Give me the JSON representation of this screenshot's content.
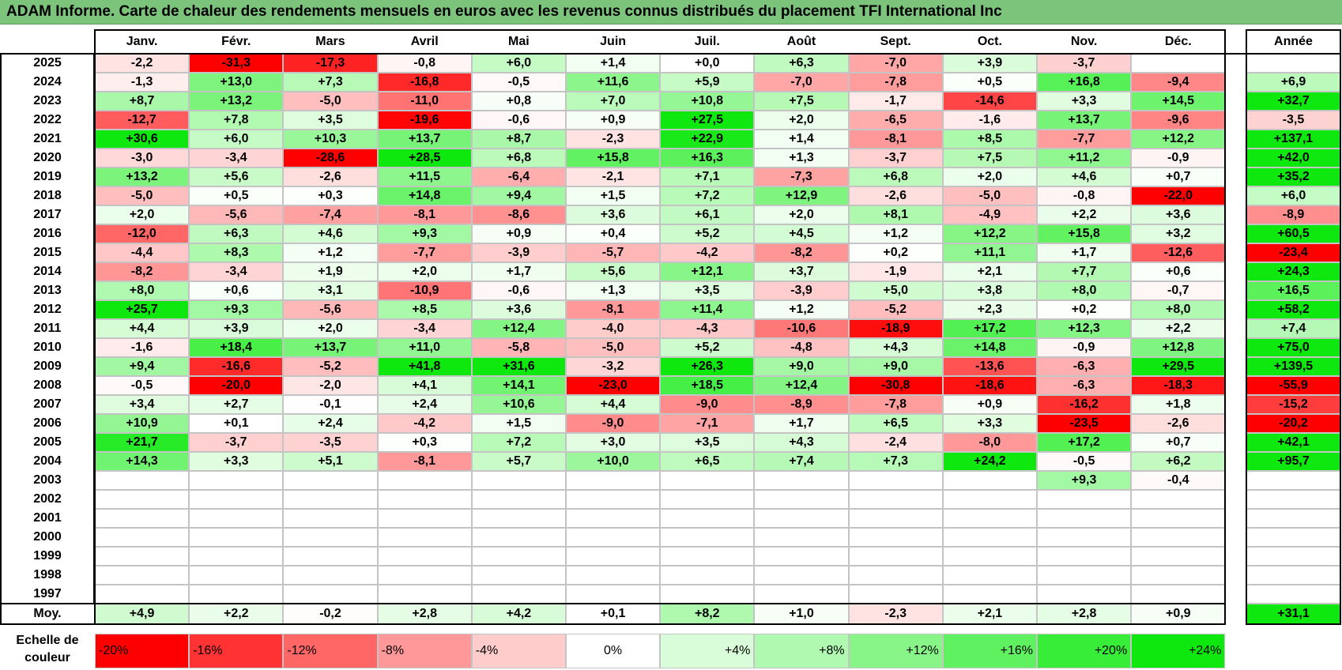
{
  "title": "ADAM Informe. Carte de chaleur des rendements mensuels en euros avec les revenus connus distribués du placement TFI International Inc",
  "chart_data": {
    "type": "heatmap",
    "title": "ADAM Informe. Carte de chaleur des rendements mensuels en euros avec les revenus connus distribués du placement TFI International Inc",
    "months": [
      "Janv.",
      "Févr.",
      "Mars",
      "Avril",
      "Mai",
      "Juin",
      "Juil.",
      "Août",
      "Sept.",
      "Oct.",
      "Nov.",
      "Déc."
    ],
    "year_header": "Année",
    "rows": [
      {
        "year": "2025",
        "values": [
          "-2,2",
          "-31,3",
          "-17,3",
          "-0,8",
          "+6,0",
          "+1,4",
          "+0,0",
          "+6,3",
          "-7,0",
          "+3,9",
          "-3,7",
          ""
        ],
        "annual": ""
      },
      {
        "year": "2024",
        "values": [
          "-1,3",
          "+13,0",
          "+7,3",
          "-16,8",
          "-0,5",
          "+11,6",
          "+5,9",
          "-7,0",
          "-7,8",
          "+0,5",
          "+16,8",
          "-9,4"
        ],
        "annual": "+6,9"
      },
      {
        "year": "2023",
        "values": [
          "+8,7",
          "+13,2",
          "-5,0",
          "-11,0",
          "+0,8",
          "+7,0",
          "+10,8",
          "+7,5",
          "-1,7",
          "-14,6",
          "+3,3",
          "+14,5"
        ],
        "annual": "+32,7"
      },
      {
        "year": "2022",
        "values": [
          "-12,7",
          "+7,8",
          "+3,5",
          "-19,6",
          "-0,6",
          "+0,9",
          "+27,5",
          "+2,0",
          "-6,5",
          "-1,6",
          "+13,7",
          "-9,6"
        ],
        "annual": "-3,5"
      },
      {
        "year": "2021",
        "values": [
          "+30,6",
          "+6,0",
          "+10,3",
          "+13,7",
          "+8,7",
          "-2,3",
          "+22,9",
          "+1,4",
          "-8,1",
          "+8,5",
          "-7,7",
          "+12,2"
        ],
        "annual": "+137,1"
      },
      {
        "year": "2020",
        "values": [
          "-3,0",
          "-3,4",
          "-28,6",
          "+28,5",
          "+6,8",
          "+15,8",
          "+16,3",
          "+1,3",
          "-3,7",
          "+7,5",
          "+11,2",
          "-0,9"
        ],
        "annual": "+42,0"
      },
      {
        "year": "2019",
        "values": [
          "+13,2",
          "+5,6",
          "-2,6",
          "+11,5",
          "-6,4",
          "-2,1",
          "+7,1",
          "-7,3",
          "+6,8",
          "+2,0",
          "+4,6",
          "+0,7"
        ],
        "annual": "+35,2"
      },
      {
        "year": "2018",
        "values": [
          "-5,0",
          "+0,5",
          "+0,3",
          "+14,8",
          "+9,4",
          "+1,5",
          "+7,2",
          "+12,9",
          "-2,6",
          "-5,0",
          "-0,8",
          "-22,0"
        ],
        "annual": "+6,0"
      },
      {
        "year": "2017",
        "values": [
          "+2,0",
          "-5,6",
          "-7,4",
          "-8,1",
          "-8,6",
          "+3,6",
          "+6,1",
          "+2,0",
          "+8,1",
          "-4,9",
          "+2,2",
          "+3,6"
        ],
        "annual": "-8,9"
      },
      {
        "year": "2016",
        "values": [
          "-12,0",
          "+6,3",
          "+4,6",
          "+9,3",
          "+0,9",
          "+0,4",
          "+5,2",
          "+4,5",
          "+1,2",
          "+12,2",
          "+15,8",
          "+3,2"
        ],
        "annual": "+60,5"
      },
      {
        "year": "2015",
        "values": [
          "-4,4",
          "+8,3",
          "+1,2",
          "-7,7",
          "-3,9",
          "-5,7",
          "-4,2",
          "-8,2",
          "+0,2",
          "+11,1",
          "+1,7",
          "-12,6"
        ],
        "annual": "-23,4"
      },
      {
        "year": "2014",
        "values": [
          "-8,2",
          "-3,4",
          "+1,9",
          "+2,0",
          "+1,7",
          "+5,6",
          "+12,1",
          "+3,7",
          "-1,9",
          "+2,1",
          "+7,7",
          "+0,6"
        ],
        "annual": "+24,3"
      },
      {
        "year": "2013",
        "values": [
          "+8,0",
          "+0,6",
          "+3,1",
          "-10,9",
          "-0,6",
          "+1,3",
          "+3,5",
          "-3,9",
          "+5,0",
          "+3,8",
          "+8,0",
          "-0,7"
        ],
        "annual": "+16,5"
      },
      {
        "year": "2012",
        "values": [
          "+25,7",
          "+9,3",
          "-5,6",
          "+8,5",
          "+3,6",
          "-8,1",
          "+11,4",
          "+1,2",
          "-5,2",
          "+2,3",
          "+0,2",
          "+8,0"
        ],
        "annual": "+58,2"
      },
      {
        "year": "2011",
        "values": [
          "+4,4",
          "+3,9",
          "+2,0",
          "-3,4",
          "+12,4",
          "-4,0",
          "-4,3",
          "-10,6",
          "-18,9",
          "+17,2",
          "+12,3",
          "+2,2"
        ],
        "annual": "+7,4"
      },
      {
        "year": "2010",
        "values": [
          "-1,6",
          "+18,4",
          "+13,7",
          "+11,0",
          "-5,8",
          "-5,0",
          "+5,2",
          "-4,8",
          "+4,3",
          "+14,8",
          "-0,9",
          "+12,8"
        ],
        "annual": "+75,0"
      },
      {
        "year": "2009",
        "values": [
          "+9,4",
          "-16,6",
          "-5,2",
          "+41,8",
          "+31,6",
          "-3,2",
          "+26,3",
          "+9,0",
          "+9,0",
          "-13,6",
          "-6,3",
          "+29,5"
        ],
        "annual": "+139,5"
      },
      {
        "year": "2008",
        "values": [
          "-0,5",
          "-20,0",
          "-2,0",
          "+4,1",
          "+14,1",
          "-23,0",
          "+18,5",
          "+12,4",
          "-30,8",
          "-18,6",
          "-6,3",
          "-18,3"
        ],
        "annual": "-55,9"
      },
      {
        "year": "2007",
        "values": [
          "+3,4",
          "+2,7",
          "-0,1",
          "+2,4",
          "+10,6",
          "+4,4",
          "-9,0",
          "-8,9",
          "-7,8",
          "+0,9",
          "-16,2",
          "+1,8"
        ],
        "annual": "-15,2"
      },
      {
        "year": "2006",
        "values": [
          "+10,9",
          "+0,1",
          "+2,4",
          "-4,2",
          "+1,5",
          "-9,0",
          "-7,1",
          "+1,7",
          "+6,5",
          "+3,3",
          "-23,5",
          "-2,6"
        ],
        "annual": "-20,2"
      },
      {
        "year": "2005",
        "values": [
          "+21,7",
          "-3,7",
          "-3,5",
          "+0,3",
          "+7,2",
          "+3,0",
          "+3,5",
          "+4,3",
          "-2,4",
          "-8,0",
          "+17,2",
          "+0,7"
        ],
        "annual": "+42,1"
      },
      {
        "year": "2004",
        "values": [
          "+14,3",
          "+3,3",
          "+5,1",
          "-8,1",
          "+5,7",
          "+10,0",
          "+6,5",
          "+7,4",
          "+7,3",
          "+24,2",
          "-0,5",
          "+6,2"
        ],
        "annual": "+95,7"
      },
      {
        "year": "2003",
        "values": [
          "",
          "",
          "",
          "",
          "",
          "",
          "",
          "",
          "",
          "",
          "+9,3",
          "-0,4"
        ],
        "annual": ""
      },
      {
        "year": "2002",
        "values": [
          "",
          "",
          "",
          "",
          "",
          "",
          "",
          "",
          "",
          "",
          "",
          ""
        ],
        "annual": ""
      },
      {
        "year": "2001",
        "values": [
          "",
          "",
          "",
          "",
          "",
          "",
          "",
          "",
          "",
          "",
          "",
          ""
        ],
        "annual": ""
      },
      {
        "year": "2000",
        "values": [
          "",
          "",
          "",
          "",
          "",
          "",
          "",
          "",
          "",
          "",
          "",
          ""
        ],
        "annual": ""
      },
      {
        "year": "1999",
        "values": [
          "",
          "",
          "",
          "",
          "",
          "",
          "",
          "",
          "",
          "",
          "",
          ""
        ],
        "annual": ""
      },
      {
        "year": "1998",
        "values": [
          "",
          "",
          "",
          "",
          "",
          "",
          "",
          "",
          "",
          "",
          "",
          ""
        ],
        "annual": ""
      },
      {
        "year": "1997",
        "values": [
          "",
          "",
          "",
          "",
          "",
          "",
          "",
          "",
          "",
          "",
          "",
          ""
        ],
        "annual": ""
      }
    ],
    "average": {
      "label": "Moy.",
      "values": [
        "+4,9",
        "+2,2",
        "-0,2",
        "+2,8",
        "+4,2",
        "+0,1",
        "+8,2",
        "+1,0",
        "-2,3",
        "+2,1",
        "+2,8",
        "+0,9"
      ],
      "annual": "+31,1"
    },
    "scale": {
      "label": "Echelle de couleur",
      "stops": [
        {
          "label": "-20%",
          "value": -20,
          "color": "#ff0000"
        },
        {
          "label": "-16%",
          "value": -16,
          "color": "#ff3333"
        },
        {
          "label": "-12%",
          "value": -12,
          "color": "#ff6666"
        },
        {
          "label": "-8%",
          "value": -8,
          "color": "#ff9999"
        },
        {
          "label": "-4%",
          "value": -4,
          "color": "#ffcccc"
        },
        {
          "label": "0%",
          "value": 0,
          "color": "#ffffff"
        },
        {
          "label": "+4%",
          "value": 4,
          "color": "#d9fcd9"
        },
        {
          "label": "+8%",
          "value": 8,
          "color": "#b0f9b0"
        },
        {
          "label": "+12%",
          "value": 12,
          "color": "#88f588"
        },
        {
          "label": "+16%",
          "value": 16,
          "color": "#5ff15f"
        },
        {
          "label": "+20%",
          "value": 20,
          "color": "#37ed37"
        },
        {
          "label": "+24%",
          "value": 24,
          "color": "#0ee80e"
        }
      ]
    }
  }
}
